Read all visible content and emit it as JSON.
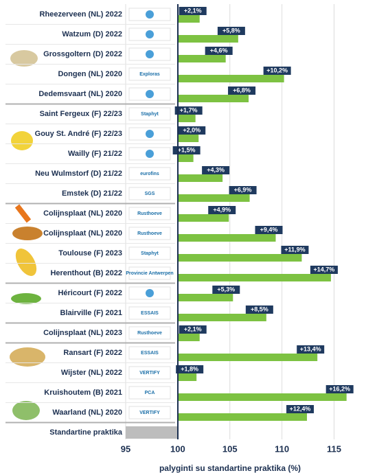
{
  "chart_data": {
    "type": "hbar",
    "x_label": "palyginti su standartine praktika (%)",
    "categories": [
      "Rheezerveen (NL) 2022",
      "Watzum (D) 2022",
      "Grossgoltern (D) 2022",
      "Dongen (NL) 2020",
      "Dedemsvaart (NL) 2020",
      "Saint Fergeux (F) 22/23",
      "Gouy St. André (F) 22/23",
      "Wailly (F) 21/22",
      "Neu Wulmstorf (D) 21/22",
      "Emstek (D) 21/22",
      "Colijnsplaat (NL) 2020",
      "Colijnsplaat (NL) 2020",
      "Toulouse (F) 2023",
      "Herenthout (B) 2022",
      "Héricourt (F) 2022",
      "Blairville (F) 2021",
      "Colijnsplaat (NL) 2023",
      "Ransart (F) 2022",
      "Wijster (NL) 2022",
      "Kruishoutem (B) 2021",
      "Waarland (NL) 2020"
    ],
    "logos": [
      null,
      null,
      null,
      "Exploras",
      null,
      "Staphyt",
      null,
      null,
      "eurofins",
      "SGS",
      "Rusthoeve",
      "Rusthoeve",
      "Staphyt",
      "Provincie Antwerpen",
      null,
      "ESSAIS",
      "Rusthoeve",
      "ESSAIS",
      "VERTIFY",
      "PCA",
      "VERTIFY"
    ],
    "values": [
      102.1,
      105.8,
      104.6,
      110.2,
      106.8,
      101.7,
      102.0,
      101.5,
      104.3,
      106.9,
      104.9,
      109.4,
      111.9,
      114.7,
      105.3,
      108.5,
      102.1,
      113.4,
      101.8,
      116.2,
      112.4
    ],
    "value_labels": [
      "+2,1%",
      "+5,8%",
      "+4,6%",
      "+10,2%",
      "+6,8%",
      "+1,7%",
      "+2,0%",
      "+1,5%",
      "+4,3%",
      "+6,9%",
      "+4,9%",
      "+9,4%",
      "+11,9%",
      "+14,7%",
      "+5,3%",
      "+8,5%",
      "+2,1%",
      "+13,4%",
      "+1,8%",
      "+16,2%",
      "+12,4%"
    ],
    "baseline": {
      "label": "Standartine praktika",
      "value": 100
    },
    "color": "#7dc242",
    "baseline_color": "#bdbdbd",
    "label_color": "#1f3a5f",
    "xlim": [
      95,
      118
    ],
    "xticks": [
      95,
      100,
      105,
      110,
      115
    ],
    "grid": true
  }
}
